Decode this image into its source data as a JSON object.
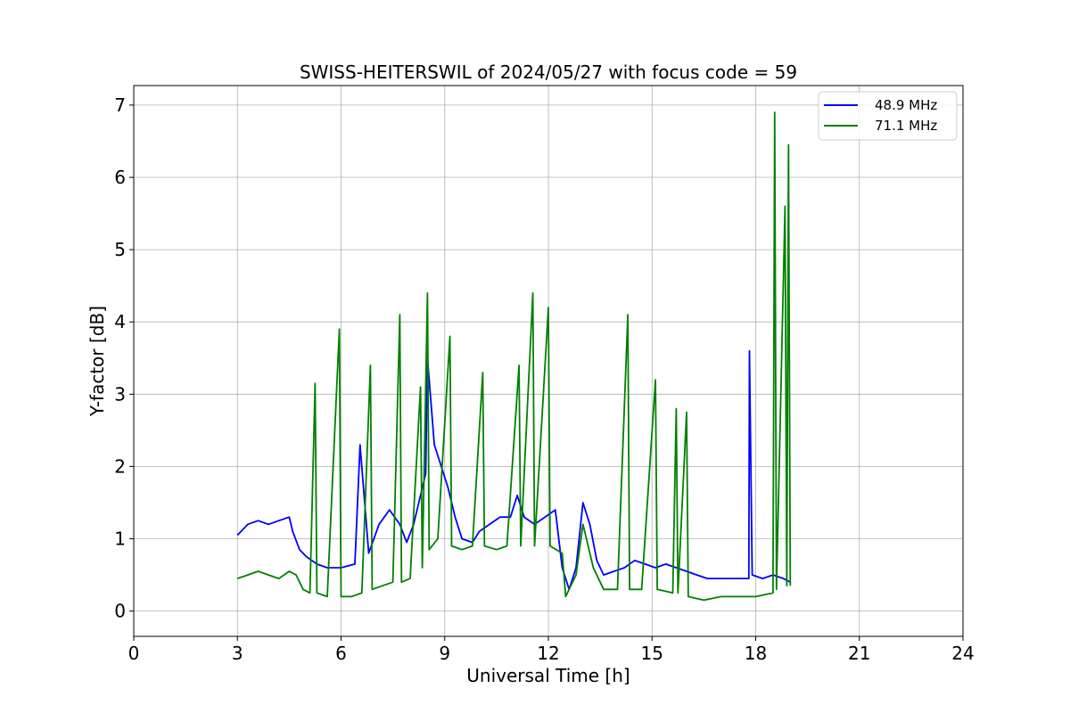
{
  "chart_data": {
    "type": "line",
    "title": "SWISS-HEITERSWIL of 2024/05/27 with focus code = 59",
    "xlabel": "Universal Time [h]",
    "ylabel": "Y-factor [dB]",
    "xlim": [
      0,
      24
    ],
    "ylim": [
      -0.35,
      7.27
    ],
    "xticks": [
      0,
      3,
      6,
      9,
      12,
      15,
      18,
      21,
      24
    ],
    "yticks": [
      0,
      1,
      2,
      3,
      4,
      5,
      6,
      7
    ],
    "grid": true,
    "legend_position": "top-right",
    "series": [
      {
        "name": "48.9 MHz",
        "color": "#0000ff",
        "points": [
          [
            3.0,
            1.05
          ],
          [
            3.3,
            1.2
          ],
          [
            3.6,
            1.25
          ],
          [
            3.9,
            1.2
          ],
          [
            4.2,
            1.25
          ],
          [
            4.5,
            1.3
          ],
          [
            4.6,
            1.1
          ],
          [
            4.8,
            0.85
          ],
          [
            5.0,
            0.75
          ],
          [
            5.3,
            0.65
          ],
          [
            5.6,
            0.6
          ],
          [
            6.0,
            0.6
          ],
          [
            6.4,
            0.65
          ],
          [
            6.55,
            2.3
          ],
          [
            6.8,
            0.8
          ],
          [
            7.1,
            1.2
          ],
          [
            7.4,
            1.4
          ],
          [
            7.7,
            1.2
          ],
          [
            7.9,
            0.95
          ],
          [
            8.1,
            1.2
          ],
          [
            8.3,
            1.6
          ],
          [
            8.45,
            1.9
          ],
          [
            8.5,
            3.5
          ],
          [
            8.7,
            2.3
          ],
          [
            8.9,
            2.0
          ],
          [
            9.1,
            1.7
          ],
          [
            9.3,
            1.3
          ],
          [
            9.5,
            1.0
          ],
          [
            9.8,
            0.95
          ],
          [
            10.0,
            1.1
          ],
          [
            10.3,
            1.2
          ],
          [
            10.6,
            1.3
          ],
          [
            10.9,
            1.3
          ],
          [
            11.1,
            1.6
          ],
          [
            11.3,
            1.3
          ],
          [
            11.6,
            1.2
          ],
          [
            11.9,
            1.3
          ],
          [
            12.2,
            1.4
          ],
          [
            12.4,
            0.6
          ],
          [
            12.6,
            0.3
          ],
          [
            12.8,
            0.6
          ],
          [
            13.0,
            1.5
          ],
          [
            13.2,
            1.2
          ],
          [
            13.4,
            0.7
          ],
          [
            13.6,
            0.5
          ],
          [
            13.9,
            0.55
          ],
          [
            14.2,
            0.6
          ],
          [
            14.5,
            0.7
          ],
          [
            14.8,
            0.65
          ],
          [
            15.1,
            0.6
          ],
          [
            15.4,
            0.65
          ],
          [
            15.7,
            0.6
          ],
          [
            16.0,
            0.55
          ],
          [
            16.3,
            0.5
          ],
          [
            16.6,
            0.45
          ],
          [
            16.9,
            0.45
          ],
          [
            17.2,
            0.45
          ],
          [
            17.5,
            0.45
          ],
          [
            17.8,
            0.45
          ],
          [
            17.82,
            3.6
          ],
          [
            17.9,
            0.5
          ],
          [
            18.2,
            0.45
          ],
          [
            18.5,
            0.5
          ],
          [
            18.8,
            0.45
          ],
          [
            19.0,
            0.4
          ]
        ]
      },
      {
        "name": "71.1 MHz",
        "color": "#008000",
        "points": [
          [
            3.0,
            0.45
          ],
          [
            3.3,
            0.5
          ],
          [
            3.6,
            0.55
          ],
          [
            3.9,
            0.5
          ],
          [
            4.2,
            0.45
          ],
          [
            4.5,
            0.55
          ],
          [
            4.7,
            0.5
          ],
          [
            4.9,
            0.3
          ],
          [
            5.1,
            0.25
          ],
          [
            5.25,
            3.15
          ],
          [
            5.3,
            0.25
          ],
          [
            5.6,
            0.2
          ],
          [
            5.95,
            3.9
          ],
          [
            6.0,
            0.2
          ],
          [
            6.3,
            0.2
          ],
          [
            6.6,
            0.25
          ],
          [
            6.85,
            3.4
          ],
          [
            6.9,
            0.3
          ],
          [
            7.2,
            0.35
          ],
          [
            7.5,
            0.4
          ],
          [
            7.7,
            4.1
          ],
          [
            7.75,
            0.4
          ],
          [
            8.0,
            0.45
          ],
          [
            8.3,
            3.1
          ],
          [
            8.35,
            0.6
          ],
          [
            8.5,
            4.4
          ],
          [
            8.55,
            0.85
          ],
          [
            8.8,
            1.0
          ],
          [
            9.15,
            3.8
          ],
          [
            9.2,
            0.9
          ],
          [
            9.5,
            0.85
          ],
          [
            9.8,
            0.9
          ],
          [
            10.1,
            3.3
          ],
          [
            10.15,
            0.9
          ],
          [
            10.5,
            0.85
          ],
          [
            10.8,
            0.9
          ],
          [
            11.15,
            3.4
          ],
          [
            11.2,
            0.9
          ],
          [
            11.55,
            4.4
          ],
          [
            11.6,
            0.9
          ],
          [
            12.0,
            4.2
          ],
          [
            12.05,
            0.9
          ],
          [
            12.4,
            0.8
          ],
          [
            12.5,
            0.2
          ],
          [
            12.8,
            0.5
          ],
          [
            13.0,
            1.2
          ],
          [
            13.3,
            0.6
          ],
          [
            13.6,
            0.3
          ],
          [
            14.0,
            0.3
          ],
          [
            14.3,
            4.1
          ],
          [
            14.35,
            0.3
          ],
          [
            14.7,
            0.3
          ],
          [
            15.1,
            3.2
          ],
          [
            15.15,
            0.3
          ],
          [
            15.6,
            0.25
          ],
          [
            15.7,
            2.8
          ],
          [
            15.75,
            0.25
          ],
          [
            16.0,
            2.75
          ],
          [
            16.05,
            0.2
          ],
          [
            16.5,
            0.15
          ],
          [
            17.0,
            0.2
          ],
          [
            17.5,
            0.2
          ],
          [
            18.0,
            0.2
          ],
          [
            18.5,
            0.25
          ],
          [
            18.55,
            6.9
          ],
          [
            18.6,
            0.3
          ],
          [
            18.85,
            5.6
          ],
          [
            18.9,
            0.35
          ],
          [
            18.95,
            6.45
          ],
          [
            19.0,
            0.35
          ]
        ]
      }
    ]
  }
}
